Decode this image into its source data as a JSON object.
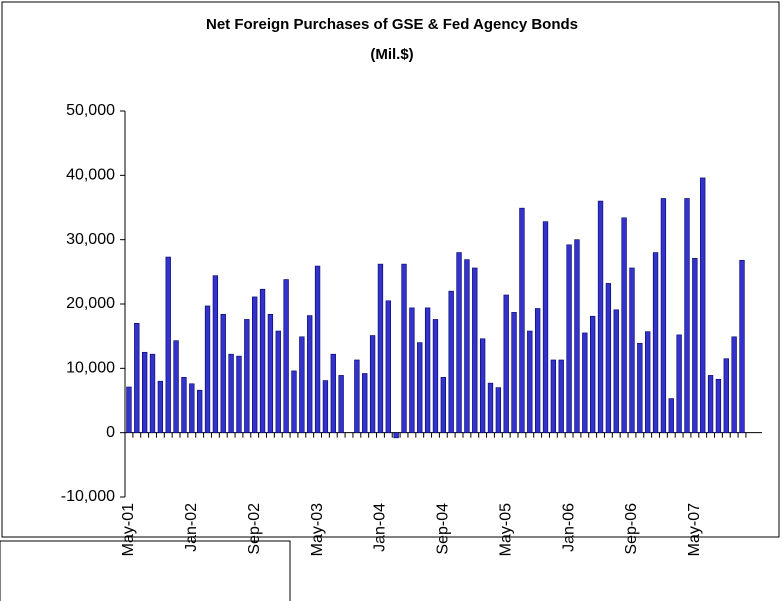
{
  "chart_data": {
    "type": "bar",
    "title": "Net Foreign Purchases of GSE & Fed Agency Bonds",
    "subtitle": "(Mil.$)",
    "categories": [
      "May-01",
      null,
      null,
      null,
      null,
      null,
      null,
      null,
      "Jan-02",
      null,
      null,
      null,
      null,
      null,
      null,
      null,
      "Sep-02",
      null,
      null,
      null,
      null,
      null,
      null,
      null,
      "May-03",
      null,
      null,
      null,
      null,
      null,
      null,
      null,
      "Jan-04",
      null,
      null,
      null,
      null,
      null,
      null,
      null,
      "Sep-04",
      null,
      null,
      null,
      null,
      null,
      null,
      null,
      "May-05",
      null,
      null,
      null,
      null,
      null,
      null,
      null,
      "Jan-06",
      null,
      null,
      null,
      null,
      null,
      null,
      null,
      "Sep-06",
      null,
      null,
      null,
      null,
      null,
      null,
      null,
      "May-07",
      null,
      null,
      null,
      null,
      null,
      null
    ],
    "values": [
      7100,
      17000,
      12500,
      12200,
      8000,
      27300,
      14300,
      8600,
      7600,
      6600,
      19700,
      24400,
      18400,
      12200,
      11900,
      17600,
      21100,
      22300,
      18400,
      15800,
      23800,
      9600,
      14900,
      18200,
      25900,
      8100,
      12200,
      8900,
      0,
      11300,
      9200,
      15100,
      26200,
      20500,
      -800,
      26200,
      19400,
      14000,
      19400,
      17600,
      8600,
      22000,
      28000,
      26900,
      25600,
      14600,
      7700,
      7000,
      21400,
      18700,
      34900,
      15800,
      19300,
      32800,
      11300,
      11300,
      29200,
      30000,
      15500,
      18100,
      36000,
      23200,
      19100,
      33400,
      25600,
      13900,
      15700,
      28000,
      36400,
      5300,
      15200,
      36400,
      27100,
      39600,
      8900,
      8300,
      11500,
      14900,
      26800
    ],
    "color": "#3333cc",
    "ylim": [
      -10000,
      50000
    ],
    "yticks": [
      {
        "value": -10000,
        "label": "-10,000"
      },
      0,
      {
        "value": 10000,
        "label": "10,000"
      },
      {
        "value": 20000,
        "label": "20,000"
      },
      {
        "value": 30000,
        "label": "30,000"
      },
      {
        "value": 40000,
        "label": "40,000"
      },
      {
        "value": 50000,
        "label": "50,000"
      }
    ],
    "grid": false
  }
}
